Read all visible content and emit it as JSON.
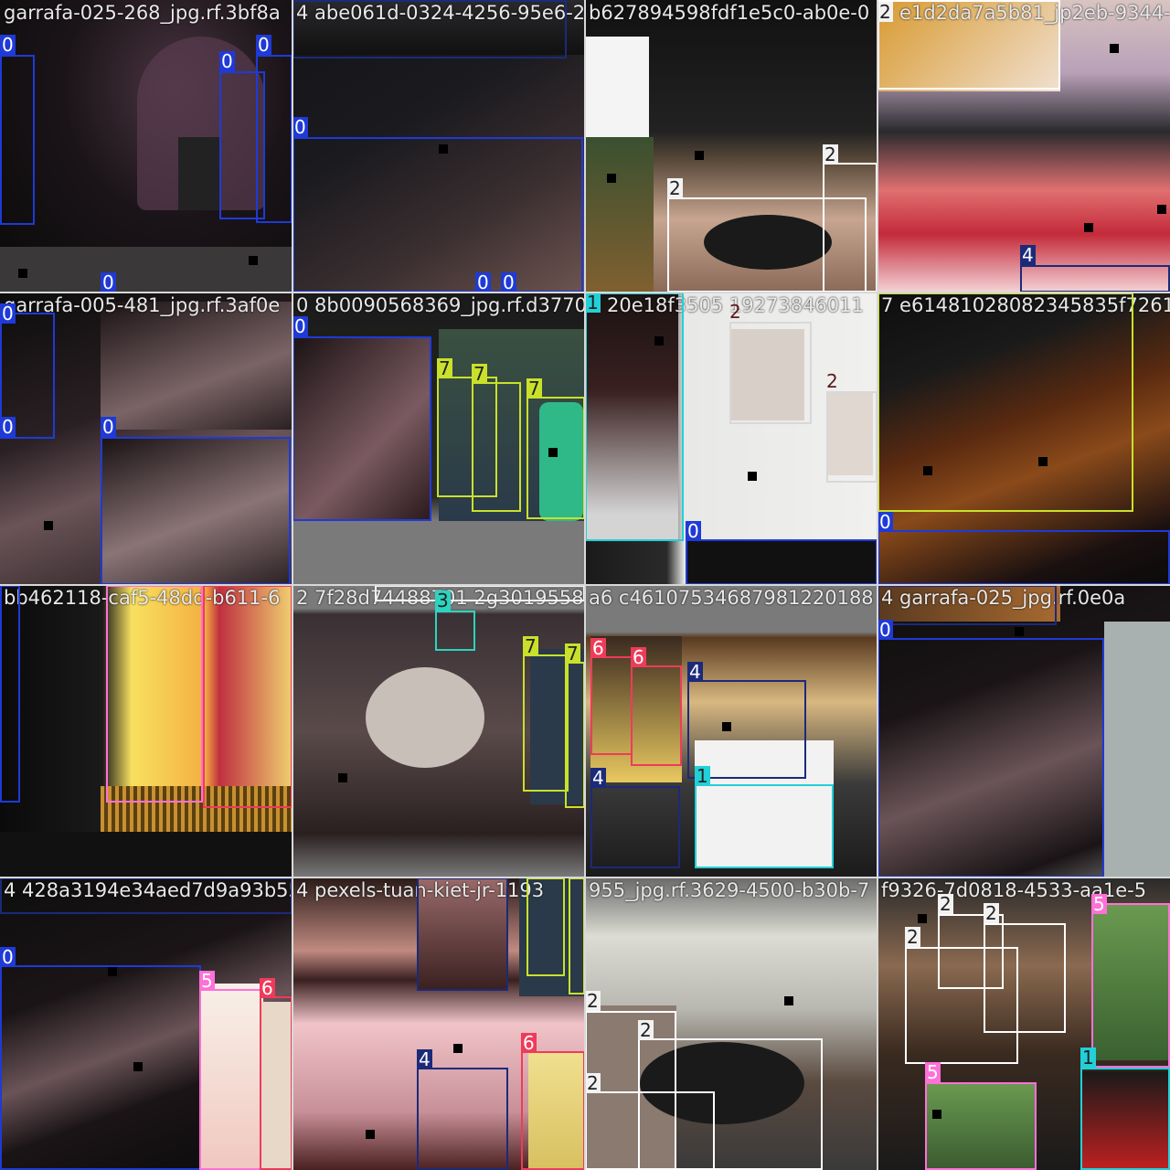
{
  "colors": {
    "class_0": "#1f3ad6",
    "class_1": "#22d0d8",
    "class_2": "#f2f2f2",
    "class_3": "#2bd4c0",
    "class_4": "#1c2a7a",
    "class_5": "#ff70d8",
    "class_6": "#ef3b5a",
    "class_7": "#c9e12a"
  },
  "tiles": [
    {
      "filename": "garrafa-025-268_jpg.rf.3bf8a",
      "labels": [
        "0",
        "0",
        "0",
        "0",
        "0"
      ]
    },
    {
      "filename": "4 abe061d-0324-4256-95e6-2",
      "labels": [
        "4",
        "0",
        "0",
        "0"
      ]
    },
    {
      "filename": "b627894598fdf1e5c0-ab0e-0",
      "labels": [
        "2",
        "2"
      ]
    },
    {
      "filename": "2 e1d2da7a5b81_jp2eb-9344-",
      "labels": [
        "2",
        "4"
      ]
    },
    {
      "filename": "garrafa-005-481_jpg.rf.3af0e",
      "labels": [
        "0",
        "0",
        "0"
      ]
    },
    {
      "filename": "0 8b0090568369_jpg.rf.d37704",
      "labels": [
        "0",
        "7",
        "7",
        "7"
      ]
    },
    {
      "filename": "1 20e18f3505 19273846011",
      "labels": [
        "1",
        "2",
        "2",
        "0"
      ]
    },
    {
      "filename": "7 e61481028082345835f7261",
      "labels": [
        "7",
        "0"
      ]
    },
    {
      "filename": "bb462118-caf5-48dd-b611-6",
      "labels": [
        "0",
        "5",
        "6"
      ]
    },
    {
      "filename": "2 7f28d74488701 2g3019558",
      "labels": [
        "2",
        "3",
        "7",
        "7"
      ]
    },
    {
      "filename": "a6 c46107534687981220188",
      "labels": [
        "6",
        "6",
        "4",
        "4",
        "1"
      ]
    },
    {
      "filename": "4 garrafa-025_jpg.rf.0e0a",
      "labels": [
        "4",
        "0"
      ]
    },
    {
      "filename": "4 428a3194e34aed7d9a93b55",
      "labels": [
        "4",
        "0",
        "5",
        "6"
      ]
    },
    {
      "filename": "4 pexels-tuan-kiet-jr-1193",
      "labels": [
        "4",
        "7",
        "7",
        "4",
        "6"
      ]
    },
    {
      "filename": "955_jpg.rf.3629-4500-b30b-7",
      "labels": [
        "2",
        "2",
        "2"
      ]
    },
    {
      "filename": "f9326-7d0818-4533-aa1e-5",
      "labels": [
        "2",
        "2",
        "2",
        "5",
        "5",
        "1"
      ]
    }
  ]
}
